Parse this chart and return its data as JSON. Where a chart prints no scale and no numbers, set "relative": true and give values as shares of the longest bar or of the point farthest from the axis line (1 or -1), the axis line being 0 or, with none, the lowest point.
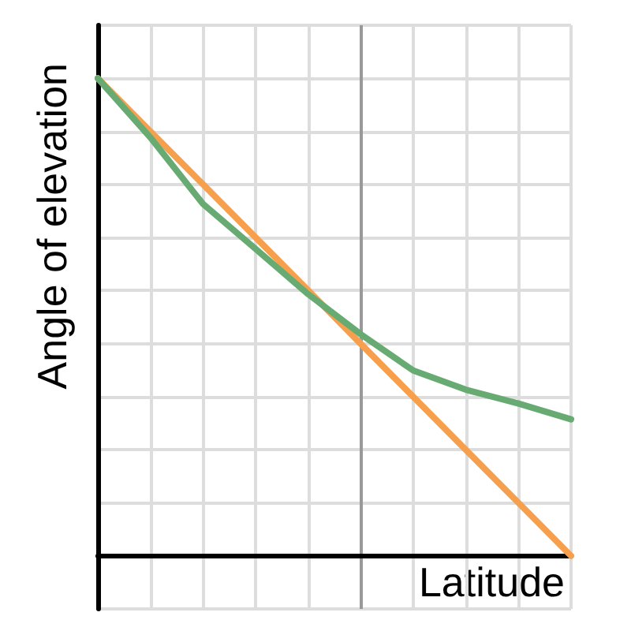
{
  "chart_data": {
    "type": "line",
    "relative": true,
    "categories": [
      null,
      null,
      null,
      null,
      null,
      null,
      null,
      null,
      null,
      null
    ],
    "series": [
      {
        "color": "#f6a04d",
        "values": [
          1,
          0.889,
          0.778,
          0.667,
          0.556,
          0.444,
          0.333,
          0.222,
          0.111,
          0
        ]
      },
      {
        "color": "#67ab73",
        "values": [
          1,
          0.876,
          0.737,
          0.643,
          0.548,
          0.464,
          0.388,
          0.348,
          0.319,
          0.286
        ]
      }
    ],
    "xlabel": "Latitude",
    "ylabel": "Angle of elevation",
    "grid": true,
    "marker": "none"
  }
}
